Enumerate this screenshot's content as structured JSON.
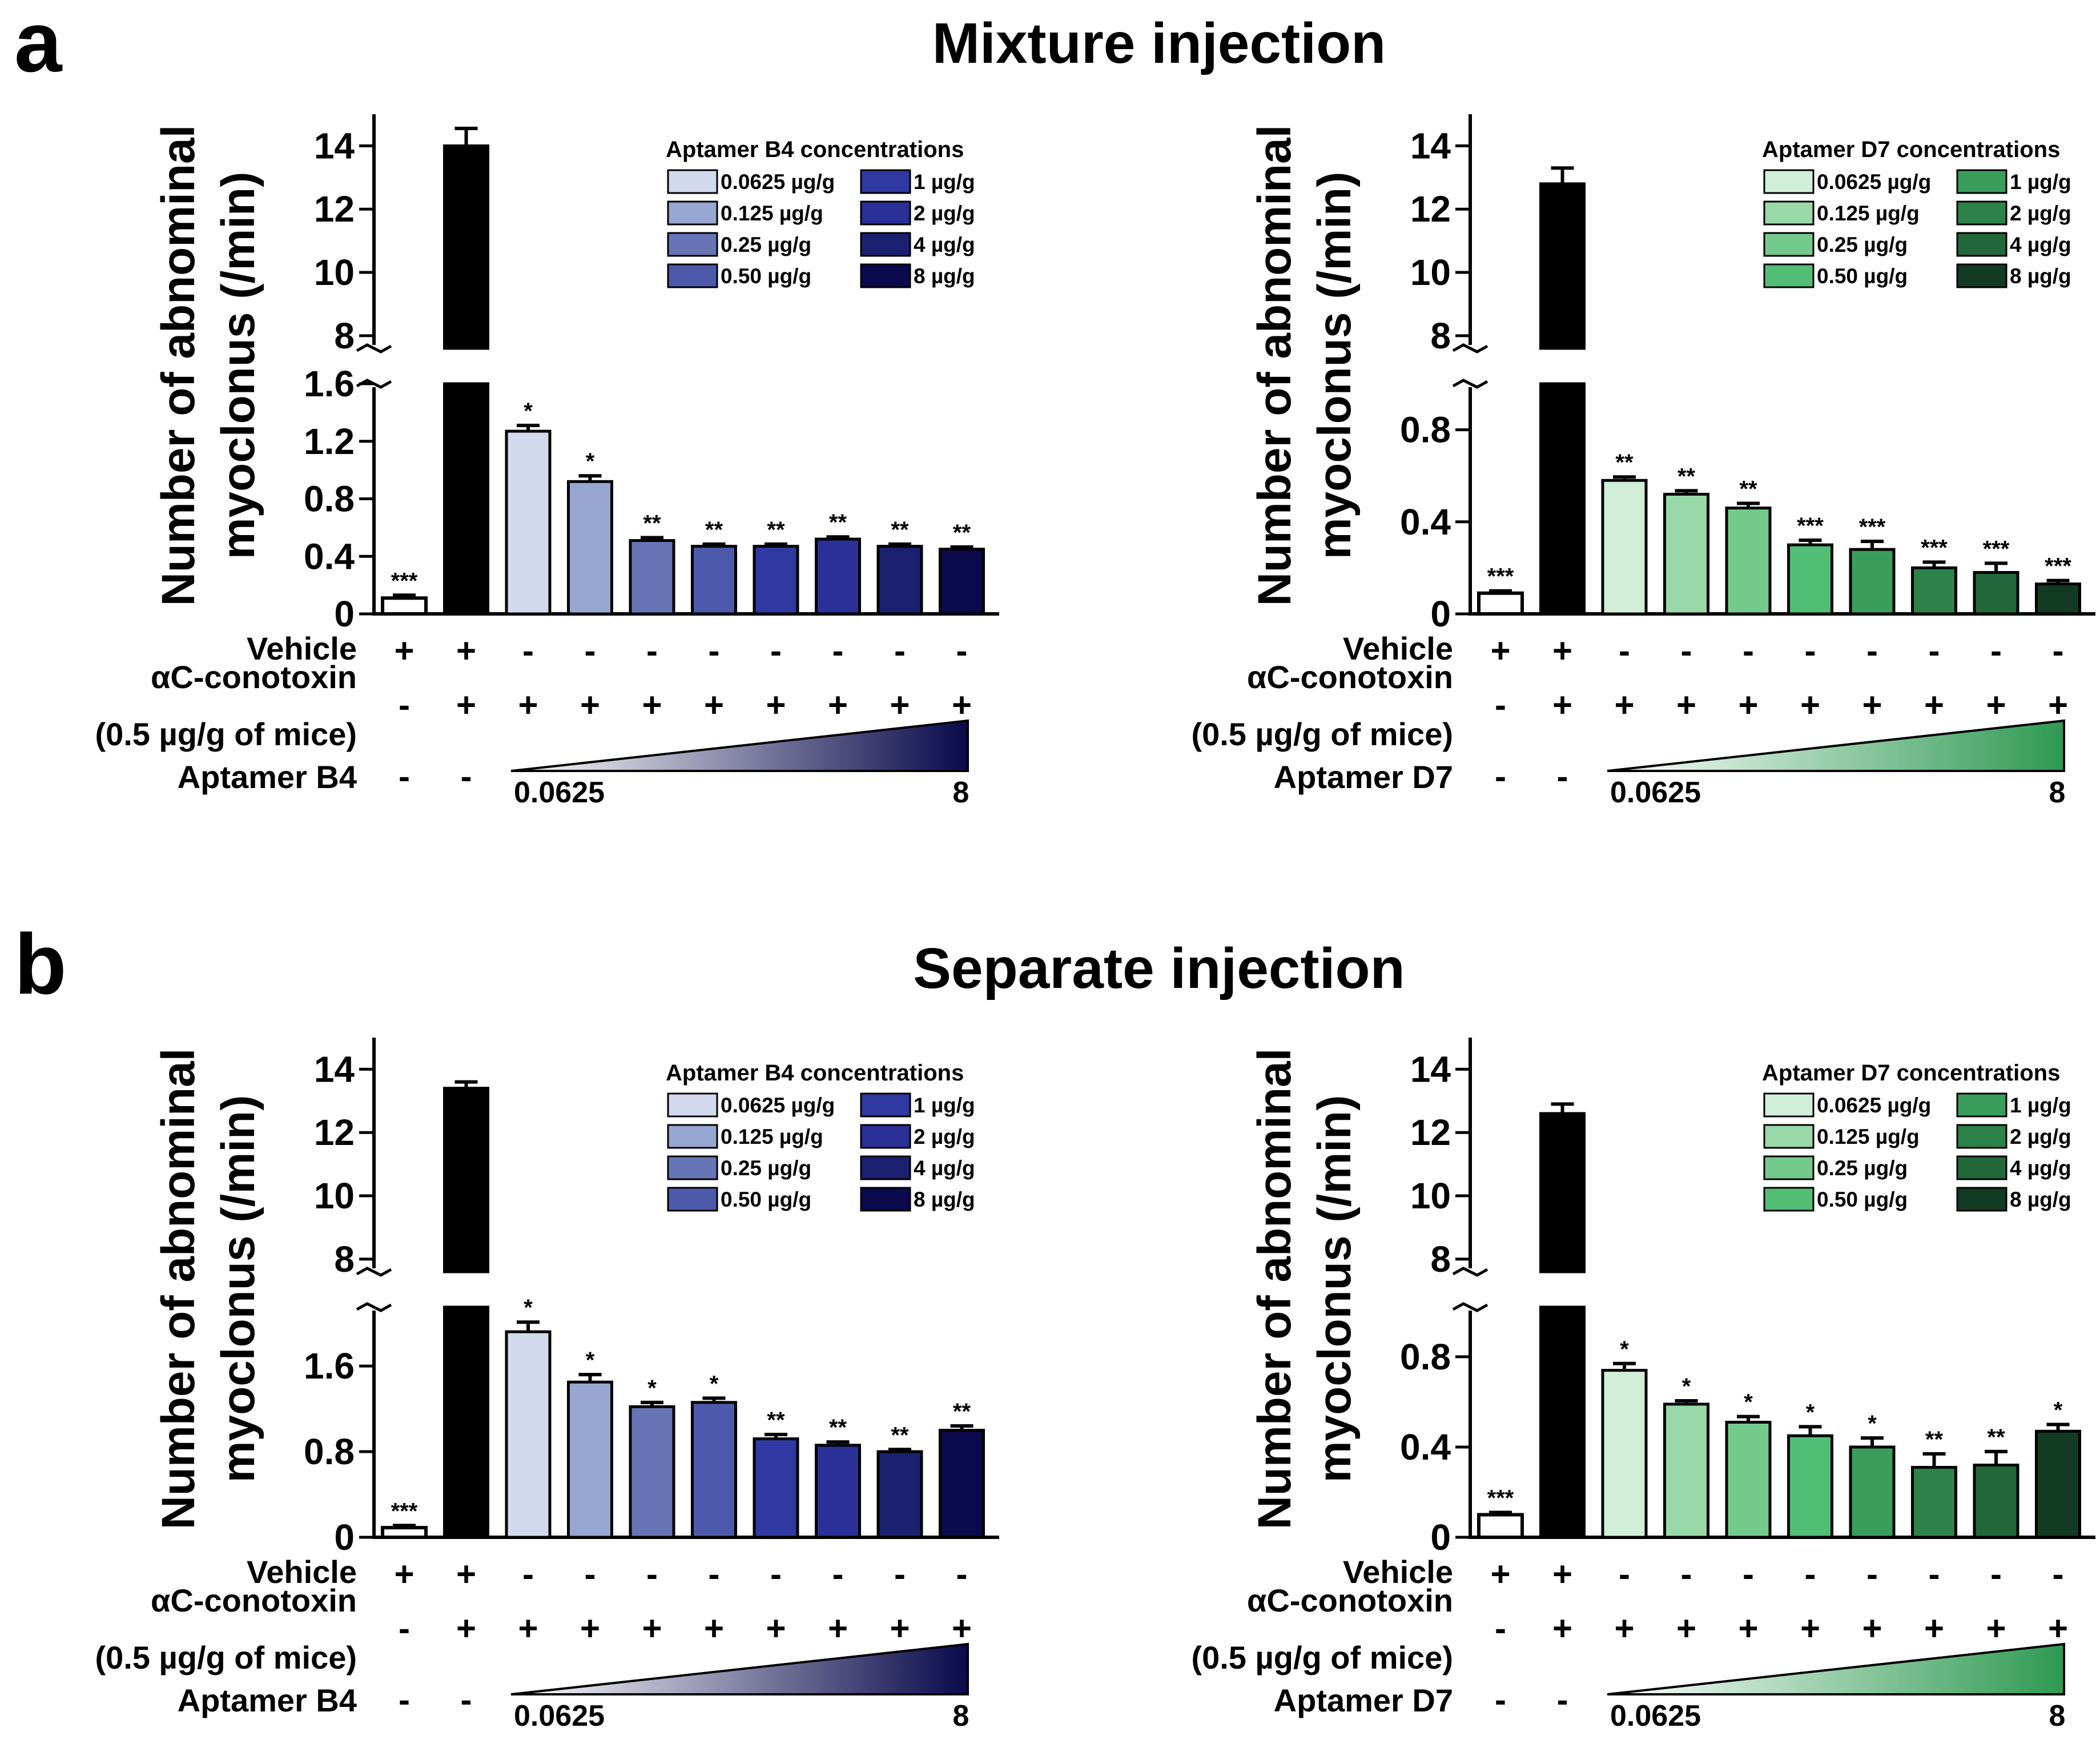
{
  "figure": {
    "panel_a": {
      "letter": "a",
      "title": "Mixture injection"
    },
    "panel_b": {
      "letter": "b",
      "title": "Separate injection"
    }
  },
  "colors": {
    "b4": [
      "#d3d9ed",
      "#98a6d2",
      "#6775b7",
      "#4d5aab",
      "#3038a1",
      "#2a3096",
      "#1b2170",
      "#0a0a4c"
    ],
    "d7": [
      "#d1efd8",
      "#99d8a9",
      "#74c98d",
      "#52bd74",
      "#3a9d5c",
      "#2c8248",
      "#22683a",
      "#133a22"
    ],
    "b4_gradient": [
      "#ffffff",
      "#0a0a4c"
    ],
    "d7_gradient": [
      "#ffffff",
      "#2e9a52"
    ]
  },
  "chart_data": [
    {
      "id": "a_b4",
      "panel": "a",
      "type": "bar",
      "ylabel": [
        "Number of abnominal",
        "myoclonus (/min)"
      ],
      "legend_title": "Aptamer B4 concentrations",
      "legend_labels": [
        "0.0625 µg/g",
        "0.125 µg/g",
        "0.25 µg/g",
        "0.50 µg/g",
        "1 µg/g",
        "2 µg/g",
        "4 µg/g",
        "8 µg/g"
      ],
      "upper_axis": {
        "range": [
          7.6,
          15.0
        ],
        "ticks": [
          "14",
          "12",
          "10",
          "8"
        ],
        "tick_values": [
          14,
          12,
          10,
          8
        ]
      },
      "lower_axis": {
        "range": [
          0,
          1.6
        ],
        "ticks": [
          "0",
          "0.4",
          "0.8",
          "1.2",
          "1.6"
        ],
        "tick_values": [
          0,
          0.4,
          0.8,
          1.2,
          1.6
        ]
      },
      "values": [
        0.11,
        14.0,
        1.27,
        0.92,
        0.51,
        0.47,
        0.47,
        0.52,
        0.47,
        0.45
      ],
      "errors": [
        0.02,
        0.55,
        0.04,
        0.04,
        0.02,
        0.015,
        0.015,
        0.015,
        0.015,
        0.015
      ],
      "significance": [
        "***",
        "",
        "*",
        "*",
        "**",
        "**",
        "**",
        "**",
        "**",
        "**"
      ],
      "rows": [
        {
          "label": [
            "Vehicle"
          ],
          "values": [
            "+",
            "+",
            "-",
            "-",
            "-",
            "-",
            "-",
            "-",
            "-",
            "-"
          ]
        },
        {
          "label": [
            "αC-conotoxin",
            "(0.5 µg/g of mice)"
          ],
          "values": [
            "-",
            "+",
            "+",
            "+",
            "+",
            "+",
            "+",
            "+",
            "+",
            "+"
          ]
        },
        {
          "label": [
            "Aptamer B4"
          ],
          "values": [
            "-",
            "-"
          ],
          "wedge_min": "0.0625",
          "wedge_max": "8"
        }
      ]
    },
    {
      "id": "a_d7",
      "panel": "a",
      "type": "bar",
      "ylabel": [
        "Number of abnominal",
        "myoclonus (/min)"
      ],
      "legend_title": "Aptamer D7 concentrations",
      "legend_labels": [
        "0.0625 µg/g",
        "0.125 µg/g",
        "0.25 µg/g",
        "0.50 µg/g",
        "1 µg/g",
        "2 µg/g",
        "4 µg/g",
        "8 µg/g"
      ],
      "upper_axis": {
        "range": [
          7.6,
          15.0
        ],
        "ticks": [
          "14",
          "12",
          "10",
          "8"
        ],
        "tick_values": [
          14,
          12,
          10,
          8
        ]
      },
      "lower_axis": {
        "range": [
          0,
          1.0
        ],
        "ticks": [
          "0",
          "0.4",
          "0.8"
        ],
        "tick_values": [
          0,
          0.4,
          0.8
        ]
      },
      "values": [
        0.09,
        12.8,
        0.58,
        0.52,
        0.46,
        0.3,
        0.28,
        0.2,
        0.18,
        0.13
      ],
      "errors": [
        0.01,
        0.5,
        0.015,
        0.015,
        0.02,
        0.02,
        0.035,
        0.025,
        0.04,
        0.015
      ],
      "significance": [
        "***",
        "",
        "**",
        "**",
        "**",
        "***",
        "***",
        "***",
        "***",
        "***"
      ],
      "rows": [
        {
          "label": [
            "Vehicle"
          ],
          "values": [
            "+",
            "+",
            "-",
            "-",
            "-",
            "-",
            "-",
            "-",
            "-",
            "-"
          ]
        },
        {
          "label": [
            "αC-conotoxin",
            "(0.5 µg/g of mice)"
          ],
          "values": [
            "-",
            "+",
            "+",
            "+",
            "+",
            "+",
            "+",
            "+",
            "+",
            "+"
          ]
        },
        {
          "label": [
            "Aptamer D7"
          ],
          "values": [
            "-",
            "-"
          ],
          "wedge_min": "0.0625",
          "wedge_max": "8"
        }
      ]
    },
    {
      "id": "b_b4",
      "panel": "b",
      "type": "bar",
      "ylabel": [
        "Number of abnominal",
        "myoclonus (/min)"
      ],
      "legend_title": "Aptamer B4 concentrations",
      "legend_labels": [
        "0.0625 µg/g",
        "0.125 µg/g",
        "0.25 µg/g",
        "0.50 µg/g",
        "1 µg/g",
        "2 µg/g",
        "4 µg/g",
        "8 µg/g"
      ],
      "upper_axis": {
        "range": [
          7.6,
          15.0
        ],
        "ticks": [
          "14",
          "12",
          "10",
          "8"
        ],
        "tick_values": [
          14,
          12,
          10,
          8
        ]
      },
      "lower_axis": {
        "range": [
          0,
          2.15
        ],
        "ticks": [
          "0",
          "0.8",
          "1.6"
        ],
        "tick_values": [
          0,
          0.8,
          1.6
        ]
      },
      "values": [
        0.09,
        13.4,
        1.92,
        1.45,
        1.22,
        1.26,
        0.92,
        0.86,
        0.8,
        1.0
      ],
      "errors": [
        0.02,
        0.2,
        0.09,
        0.07,
        0.04,
        0.04,
        0.04,
        0.03,
        0.02,
        0.04
      ],
      "significance": [
        "***",
        "",
        "*",
        "*",
        "*",
        "*",
        "**",
        "**",
        "**",
        "**"
      ],
      "rows": [
        {
          "label": [
            "Vehicle"
          ],
          "values": [
            "+",
            "+",
            "-",
            "-",
            "-",
            "-",
            "-",
            "-",
            "-",
            "-"
          ]
        },
        {
          "label": [
            "αC-conotoxin",
            "(0.5 µg/g of mice)"
          ],
          "values": [
            "-",
            "+",
            "+",
            "+",
            "+",
            "+",
            "+",
            "+",
            "+",
            "+"
          ]
        },
        {
          "label": [
            "Aptamer B4"
          ],
          "values": [
            "-",
            "-"
          ],
          "wedge_min": "0.0625",
          "wedge_max": "8"
        }
      ]
    },
    {
      "id": "b_d7",
      "panel": "b",
      "type": "bar",
      "ylabel": [
        "Number of abnominal",
        "myoclonus (/min)"
      ],
      "legend_title": "Aptamer D7 concentrations",
      "legend_labels": [
        "0.0625 µg/g",
        "0.125 µg/g",
        "0.25 µg/g",
        "0.50 µg/g",
        "1 µg/g",
        "2 µg/g",
        "4 µg/g",
        "8 µg/g"
      ],
      "upper_axis": {
        "range": [
          7.6,
          15.0
        ],
        "ticks": [
          "14",
          "12",
          "10",
          "8"
        ],
        "tick_values": [
          14,
          12,
          10,
          8
        ]
      },
      "lower_axis": {
        "range": [
          0,
          1.02
        ],
        "ticks": [
          "0",
          "0.4",
          "0.8"
        ],
        "tick_values": [
          0,
          0.4,
          0.8
        ]
      },
      "values": [
        0.1,
        12.6,
        0.74,
        0.59,
        0.51,
        0.45,
        0.4,
        0.31,
        0.32,
        0.47
      ],
      "errors": [
        0.01,
        0.3,
        0.03,
        0.015,
        0.025,
        0.04,
        0.04,
        0.06,
        0.06,
        0.03
      ],
      "significance": [
        "***",
        "",
        "*",
        "*",
        "*",
        "*",
        "*",
        "**",
        "**",
        "*"
      ],
      "rows": [
        {
          "label": [
            "Vehicle"
          ],
          "values": [
            "+",
            "+",
            "-",
            "-",
            "-",
            "-",
            "-",
            "-",
            "-",
            "-"
          ]
        },
        {
          "label": [
            "αC-conotoxin",
            "(0.5 µg/g of mice)"
          ],
          "values": [
            "-",
            "+",
            "+",
            "+",
            "+",
            "+",
            "+",
            "+",
            "+",
            "+"
          ]
        },
        {
          "label": [
            "Aptamer D7"
          ],
          "values": [
            "-",
            "-"
          ],
          "wedge_min": "0.0625",
          "wedge_max": "8"
        }
      ]
    }
  ]
}
